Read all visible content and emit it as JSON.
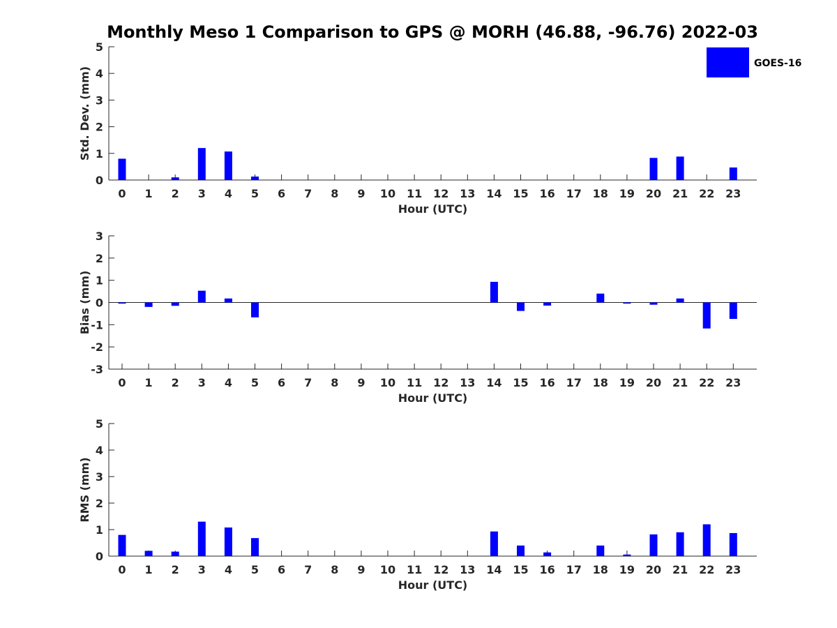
{
  "figure": {
    "title": "Monthly Meso 1 Comparison to GPS @ MORH (46.88, -96.76) 2022-03"
  },
  "legend": {
    "label": "GOES-16",
    "color": "#0000ff"
  },
  "chart_data": [
    {
      "type": "bar",
      "name": "std-dev",
      "title": "",
      "xlabel": "Hour (UTC)",
      "ylabel": "Std. Dev. (mm)",
      "ylim": [
        0,
        5
      ],
      "yticks": [
        "0",
        "1",
        "2",
        "3",
        "4",
        "5"
      ],
      "categories": [
        "0",
        "1",
        "2",
        "3",
        "4",
        "5",
        "6",
        "7",
        "8",
        "9",
        "10",
        "11",
        "12",
        "13",
        "14",
        "15",
        "16",
        "17",
        "18",
        "19",
        "20",
        "21",
        "22",
        "23"
      ],
      "series": [
        {
          "name": "GOES-16",
          "values": [
            0.8,
            null,
            0.1,
            1.2,
            1.07,
            0.13,
            null,
            null,
            null,
            null,
            null,
            null,
            null,
            null,
            null,
            null,
            null,
            null,
            null,
            null,
            0.83,
            0.88,
            null,
            0.47
          ]
        }
      ]
    },
    {
      "type": "bar",
      "name": "bias",
      "title": "",
      "xlabel": "Hour (UTC)",
      "ylabel": "Bias (mm)",
      "ylim": [
        -3,
        3
      ],
      "yticks": [
        "-3",
        "-2",
        "-1",
        "0",
        "1",
        "2",
        "3"
      ],
      "categories": [
        "0",
        "1",
        "2",
        "3",
        "4",
        "5",
        "6",
        "7",
        "8",
        "9",
        "10",
        "11",
        "12",
        "13",
        "14",
        "15",
        "16",
        "17",
        "18",
        "19",
        "20",
        "21",
        "22",
        "23"
      ],
      "series": [
        {
          "name": "GOES-16",
          "values": [
            -0.05,
            -0.2,
            -0.15,
            0.53,
            0.18,
            -0.67,
            null,
            null,
            null,
            null,
            null,
            null,
            null,
            null,
            0.93,
            -0.38,
            -0.14,
            null,
            0.4,
            -0.05,
            -0.1,
            0.18,
            -1.17,
            -0.74
          ]
        }
      ]
    },
    {
      "type": "bar",
      "name": "rms",
      "title": "",
      "xlabel": "Hour (UTC)",
      "ylabel": "RMS (mm)",
      "ylim": [
        0,
        5
      ],
      "yticks": [
        "0",
        "1",
        "2",
        "3",
        "4",
        "5"
      ],
      "categories": [
        "0",
        "1",
        "2",
        "3",
        "4",
        "5",
        "6",
        "7",
        "8",
        "9",
        "10",
        "11",
        "12",
        "13",
        "14",
        "15",
        "16",
        "17",
        "18",
        "19",
        "20",
        "21",
        "22",
        "23"
      ],
      "series": [
        {
          "name": "GOES-16",
          "values": [
            0.8,
            0.2,
            0.17,
            1.3,
            1.08,
            0.68,
            null,
            null,
            null,
            null,
            null,
            null,
            null,
            null,
            0.93,
            0.4,
            0.14,
            null,
            0.4,
            0.06,
            0.82,
            0.9,
            1.2,
            0.87
          ]
        }
      ]
    }
  ]
}
